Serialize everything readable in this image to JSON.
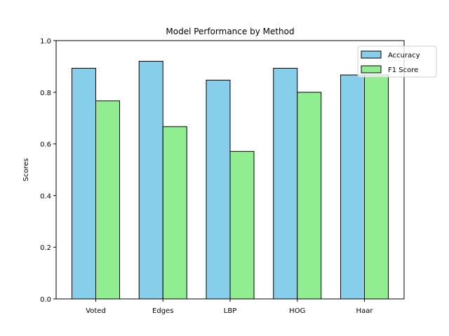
{
  "chart_data": {
    "type": "bar",
    "title": "Model Performance by Method",
    "xlabel": "",
    "ylabel": "Scores",
    "categories": [
      "Voted",
      "Edges",
      "LBP",
      "HOG",
      "Haar"
    ],
    "series": [
      {
        "name": "Accuracy",
        "values": [
          0.893,
          0.92,
          0.847,
          0.893,
          0.867
        ],
        "color": "#87ceeb"
      },
      {
        "name": "F1 Score",
        "values": [
          0.767,
          0.667,
          0.571,
          0.8,
          0.867
        ],
        "color": "#90ee90"
      }
    ],
    "ylim": [
      0,
      1.0
    ],
    "yticks": [
      "0.0",
      "0.2",
      "0.4",
      "0.6",
      "0.8",
      "1.0"
    ],
    "grid": false,
    "legend_position": "top-right",
    "edge_color": "#000000"
  }
}
